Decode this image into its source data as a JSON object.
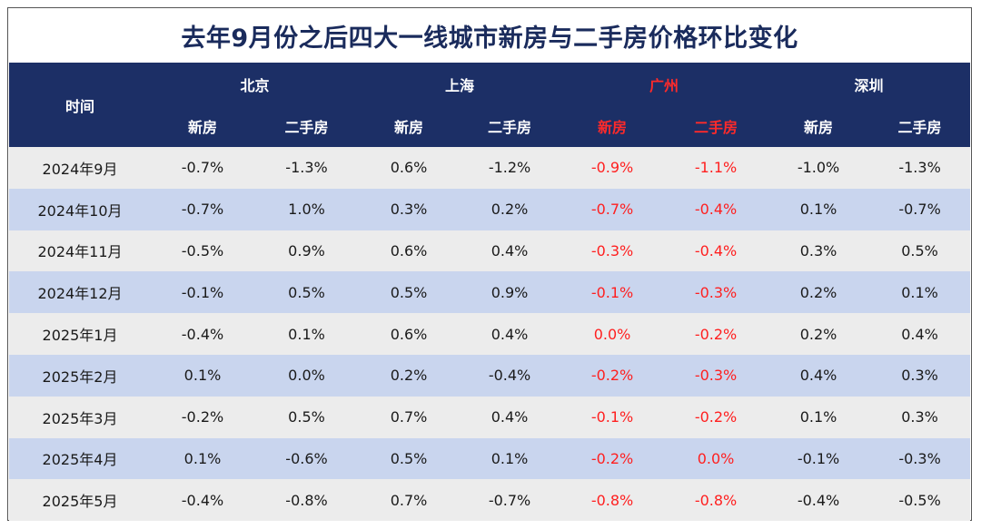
{
  "title": "去年9月份之后四大一线城市新房与二手房价格环比变化",
  "chart_data": {
    "type": "table",
    "title": "去年9月份之后四大一线城市新房与二手房价格环比变化",
    "row_header": "时间",
    "cities": [
      {
        "name": "北京",
        "color": "#ffffff"
      },
      {
        "name": "上海",
        "color": "#ffffff"
      },
      {
        "name": "广州",
        "color": "#ff2a2a"
      },
      {
        "name": "深圳",
        "color": "#ffffff"
      }
    ],
    "sub_headers": [
      "新房",
      "二手房"
    ],
    "columns": [
      "北京 新房",
      "北京 二手房",
      "上海 新房",
      "上海 二手房",
      "广州 新房",
      "广州 二手房",
      "深圳 新房",
      "深圳 二手房"
    ],
    "rows": [
      {
        "period": "2024年9月",
        "values": [
          "-0.7%",
          "-1.3%",
          "0.6%",
          "-1.2%",
          "-0.9%",
          "-1.1%",
          "-1.0%",
          "-1.3%"
        ]
      },
      {
        "period": "2024年10月",
        "values": [
          "-0.7%",
          "1.0%",
          "0.3%",
          "0.2%",
          "-0.7%",
          "-0.4%",
          "0.1%",
          "-0.7%"
        ]
      },
      {
        "period": "2024年11月",
        "values": [
          "-0.5%",
          "0.9%",
          "0.6%",
          "0.4%",
          "-0.3%",
          "-0.4%",
          "0.3%",
          "0.5%"
        ]
      },
      {
        "period": "2024年12月",
        "values": [
          "-0.1%",
          "0.5%",
          "0.5%",
          "0.9%",
          "-0.1%",
          "-0.3%",
          "0.2%",
          "0.1%"
        ]
      },
      {
        "period": "2025年1月",
        "values": [
          "-0.4%",
          "0.1%",
          "0.6%",
          "0.4%",
          "0.0%",
          "-0.2%",
          "0.2%",
          "0.4%"
        ]
      },
      {
        "period": "2025年2月",
        "values": [
          "0.1%",
          "0.0%",
          "0.2%",
          "-0.4%",
          "-0.2%",
          "-0.3%",
          "0.4%",
          "0.3%"
        ]
      },
      {
        "period": "2025年3月",
        "values": [
          "-0.2%",
          "0.5%",
          "0.7%",
          "0.4%",
          "-0.1%",
          "-0.2%",
          "0.1%",
          "0.3%"
        ]
      },
      {
        "period": "2025年4月",
        "values": [
          "0.1%",
          "-0.6%",
          "0.5%",
          "0.1%",
          "-0.2%",
          "0.0%",
          "-0.1%",
          "-0.3%"
        ]
      },
      {
        "period": "2025年5月",
        "values": [
          "-0.4%",
          "-0.8%",
          "0.7%",
          "-0.7%",
          "-0.8%",
          "-0.8%",
          "-0.4%",
          "-0.5%"
        ]
      }
    ],
    "highlight_color": "#ff1f1f",
    "highlight_city": "广州"
  }
}
